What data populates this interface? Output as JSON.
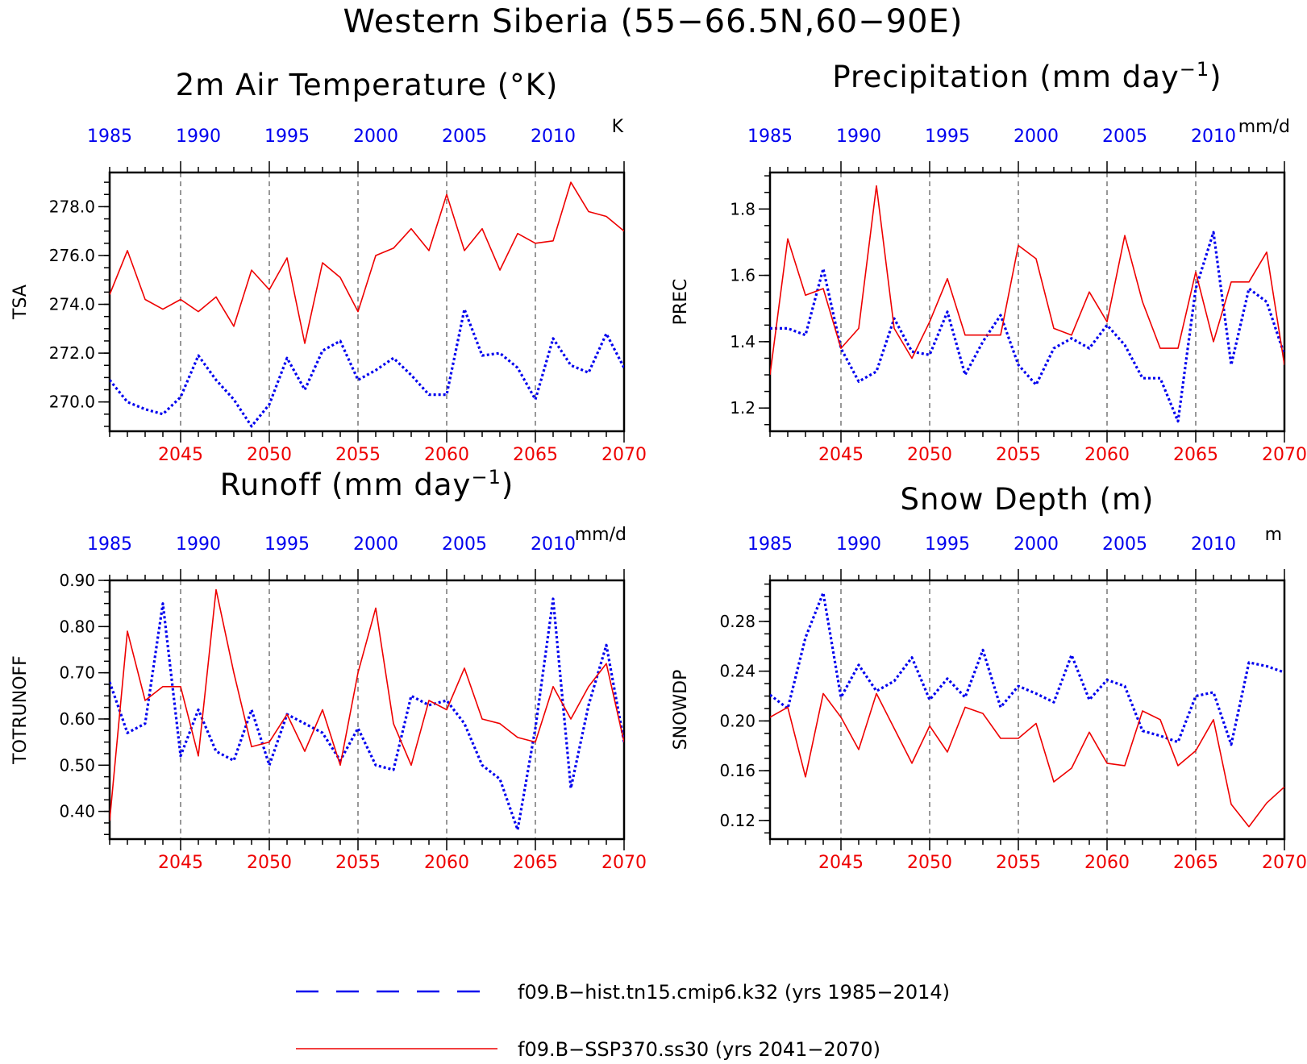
{
  "figure_title": "Western Siberia (55−66.5N,60−90E)",
  "legend": [
    {
      "label": "f09.B−hist.tn15.cmip6.k32 (yrs 1985−2014)",
      "color": "#0000ee",
      "style": "dashed"
    },
    {
      "label": "f09.B−SSP370.ss30 (yrs 2041−2070)",
      "color": "#ee0000",
      "style": "solid"
    }
  ],
  "chart_data": [
    {
      "type": "line",
      "title": "2m Air Temperature (°K)",
      "title_sup": "",
      "title_suffix": "",
      "ylabel": "TSA",
      "unit": "K",
      "ylim": [
        268.8,
        279.4
      ],
      "yticks": [
        270,
        272,
        274,
        276,
        278
      ],
      "ytick_labels": [
        "270.0",
        "272.0",
        "274.0",
        "276.0",
        "278.0"
      ],
      "x_future": [
        2041,
        2042,
        2043,
        2044,
        2045,
        2046,
        2047,
        2048,
        2049,
        2050,
        2051,
        2052,
        2053,
        2054,
        2055,
        2056,
        2057,
        2058,
        2059,
        2060,
        2061,
        2062,
        2063,
        2064,
        2065,
        2066,
        2067,
        2068,
        2069,
        2070
      ],
      "xticks_bottom": [
        "2045",
        "2050",
        "2055",
        "2060",
        "2065",
        "2070"
      ],
      "xticks_top": [
        "1985",
        "1990",
        "1995",
        "2000",
        "2005",
        "2010"
      ],
      "grid": "vertical dashed at 2045, 2050, 2055, 2060, 2065",
      "series": [
        {
          "name": "f09.B−hist.tn15.cmip6.k32 (yrs 1985−2014)",
          "years": "1985−2014",
          "color": "#0000ee",
          "values": [
            270.9,
            270.0,
            269.7,
            269.5,
            270.2,
            271.9,
            270.9,
            270.1,
            269.0,
            269.9,
            271.8,
            270.5,
            272.1,
            272.5,
            270.9,
            271.3,
            271.8,
            271.1,
            270.3,
            270.3,
            273.8,
            271.9,
            272.0,
            271.4,
            270.1,
            272.6,
            271.5,
            271.2,
            272.8,
            271.4
          ]
        },
        {
          "name": "f09.B−SSP370.ss30 (yrs 2041−2070)",
          "years": "2041−2070",
          "color": "#ee0000",
          "values": [
            274.4,
            276.2,
            274.2,
            273.8,
            274.2,
            273.7,
            274.3,
            273.1,
            275.4,
            274.6,
            275.9,
            272.4,
            275.7,
            275.1,
            273.7,
            276.0,
            276.3,
            277.1,
            276.2,
            278.5,
            276.2,
            277.1,
            275.4,
            276.9,
            276.5,
            276.6,
            279.0,
            277.8,
            277.6,
            277.0
          ]
        }
      ]
    },
    {
      "type": "line",
      "title": "Precipitation (mm day",
      "title_sup": "−1",
      "title_suffix": ")",
      "ylabel": "PREC",
      "unit": "mm/d",
      "ylim": [
        1.13,
        1.91
      ],
      "yticks": [
        1.2,
        1.4,
        1.6,
        1.8
      ],
      "ytick_labels": [
        "1.2",
        "1.4",
        "1.6",
        "1.8"
      ],
      "x_future": [
        2041,
        2042,
        2043,
        2044,
        2045,
        2046,
        2047,
        2048,
        2049,
        2050,
        2051,
        2052,
        2053,
        2054,
        2055,
        2056,
        2057,
        2058,
        2059,
        2060,
        2061,
        2062,
        2063,
        2064,
        2065,
        2066,
        2067,
        2068,
        2069,
        2070
      ],
      "xticks_bottom": [
        "2045",
        "2050",
        "2055",
        "2060",
        "2065",
        "2070"
      ],
      "xticks_top": [
        "1985",
        "1990",
        "1995",
        "2000",
        "2005",
        "2010"
      ],
      "grid": "vertical dashed at 2045, 2050, 2055, 2060, 2065",
      "series": [
        {
          "name": "f09.B−hist.tn15.cmip6.k32 (yrs 1985−2014)",
          "years": "1985−2014",
          "color": "#0000ee",
          "values": [
            1.44,
            1.44,
            1.42,
            1.62,
            1.38,
            1.28,
            1.31,
            1.47,
            1.37,
            1.36,
            1.49,
            1.3,
            1.4,
            1.48,
            1.33,
            1.27,
            1.38,
            1.41,
            1.38,
            1.45,
            1.39,
            1.29,
            1.29,
            1.16,
            1.56,
            1.73,
            1.33,
            1.56,
            1.52,
            1.36
          ]
        },
        {
          "name": "f09.B−SSP370.ss30 (yrs 2041−2070)",
          "years": "2041−2070",
          "color": "#ee0000",
          "values": [
            1.3,
            1.71,
            1.54,
            1.56,
            1.38,
            1.44,
            1.87,
            1.44,
            1.35,
            1.46,
            1.59,
            1.42,
            1.42,
            1.42,
            1.69,
            1.65,
            1.44,
            1.42,
            1.55,
            1.46,
            1.72,
            1.52,
            1.38,
            1.38,
            1.61,
            1.4,
            1.58,
            1.58,
            1.67,
            1.33
          ]
        }
      ]
    },
    {
      "type": "line",
      "title": "Runoff (mm day",
      "title_sup": "−1",
      "title_suffix": ")",
      "ylabel": "TOTRUNOFF",
      "unit": "mm/d",
      "ylim": [
        0.34,
        0.9
      ],
      "yticks": [
        0.4,
        0.5,
        0.6,
        0.7,
        0.8,
        0.9
      ],
      "ytick_labels": [
        "0.40",
        "0.50",
        "0.60",
        "0.70",
        "0.80",
        "0.90"
      ],
      "x_future": [
        2041,
        2042,
        2043,
        2044,
        2045,
        2046,
        2047,
        2048,
        2049,
        2050,
        2051,
        2052,
        2053,
        2054,
        2055,
        2056,
        2057,
        2058,
        2059,
        2060,
        2061,
        2062,
        2063,
        2064,
        2065,
        2066,
        2067,
        2068,
        2069,
        2070
      ],
      "xticks_bottom": [
        "2045",
        "2050",
        "2055",
        "2060",
        "2065",
        "2070"
      ],
      "xticks_top": [
        "1985",
        "1990",
        "1995",
        "2000",
        "2005",
        "2010"
      ],
      "grid": "vertical dashed at 2045, 2050, 2055, 2060, 2065",
      "series": [
        {
          "name": "f09.B−hist.tn15.cmip6.k32 (yrs 1985−2014)",
          "years": "1985−2014",
          "color": "#0000ee",
          "values": [
            0.68,
            0.57,
            0.59,
            0.85,
            0.52,
            0.62,
            0.53,
            0.51,
            0.62,
            0.5,
            0.61,
            0.59,
            0.57,
            0.51,
            0.58,
            0.5,
            0.49,
            0.65,
            0.63,
            0.64,
            0.59,
            0.5,
            0.47,
            0.36,
            0.58,
            0.86,
            0.45,
            0.63,
            0.76,
            0.55
          ]
        },
        {
          "name": "f09.B−SSP370.ss30 (yrs 2041−2070)",
          "years": "2041−2070",
          "color": "#ee0000",
          "values": [
            0.38,
            0.79,
            0.64,
            0.67,
            0.67,
            0.52,
            0.88,
            0.7,
            0.54,
            0.55,
            0.61,
            0.53,
            0.62,
            0.5,
            0.7,
            0.84,
            0.59,
            0.5,
            0.64,
            0.62,
            0.71,
            0.6,
            0.59,
            0.56,
            0.55,
            0.67,
            0.6,
            0.67,
            0.72,
            0.55
          ]
        }
      ]
    },
    {
      "type": "line",
      "title": "Snow Depth (m)",
      "title_sup": "",
      "title_suffix": "",
      "ylabel": "SNOWDP",
      "unit": "m",
      "ylim": [
        0.105,
        0.313
      ],
      "yticks": [
        0.12,
        0.16,
        0.2,
        0.24,
        0.28
      ],
      "ytick_labels": [
        "0.12",
        "0.16",
        "0.20",
        "0.24",
        "0.28"
      ],
      "x_future": [
        2041,
        2042,
        2043,
        2044,
        2045,
        2046,
        2047,
        2048,
        2049,
        2050,
        2051,
        2052,
        2053,
        2054,
        2055,
        2056,
        2057,
        2058,
        2059,
        2060,
        2061,
        2062,
        2063,
        2064,
        2065,
        2066,
        2067,
        2068,
        2069,
        2070
      ],
      "xticks_bottom": [
        "2045",
        "2050",
        "2055",
        "2060",
        "2065",
        "2070"
      ],
      "xticks_top": [
        "1985",
        "1990",
        "1995",
        "2000",
        "2005",
        "2010"
      ],
      "grid": "vertical dashed at 2045, 2050, 2055, 2060, 2065",
      "series": [
        {
          "name": "f09.B−hist.tn15.cmip6.k32 (yrs 1985−2014)",
          "years": "1985−2014",
          "color": "#0000ee",
          "values": [
            0.221,
            0.21,
            0.267,
            0.303,
            0.219,
            0.245,
            0.224,
            0.232,
            0.251,
            0.217,
            0.234,
            0.219,
            0.257,
            0.211,
            0.228,
            0.222,
            0.215,
            0.253,
            0.217,
            0.233,
            0.228,
            0.192,
            0.188,
            0.183,
            0.22,
            0.223,
            0.181,
            0.247,
            0.244,
            0.239
          ]
        },
        {
          "name": "f09.B−SSP370.ss30 (yrs 2041−2070)",
          "years": "2041−2070",
          "color": "#ee0000",
          "values": [
            0.203,
            0.211,
            0.155,
            0.222,
            0.203,
            0.177,
            0.222,
            0.194,
            0.166,
            0.196,
            0.175,
            0.211,
            0.206,
            0.186,
            0.186,
            0.198,
            0.151,
            0.162,
            0.191,
            0.166,
            0.164,
            0.208,
            0.201,
            0.164,
            0.176,
            0.201,
            0.133,
            0.115,
            0.134,
            0.147
          ]
        }
      ]
    }
  ]
}
